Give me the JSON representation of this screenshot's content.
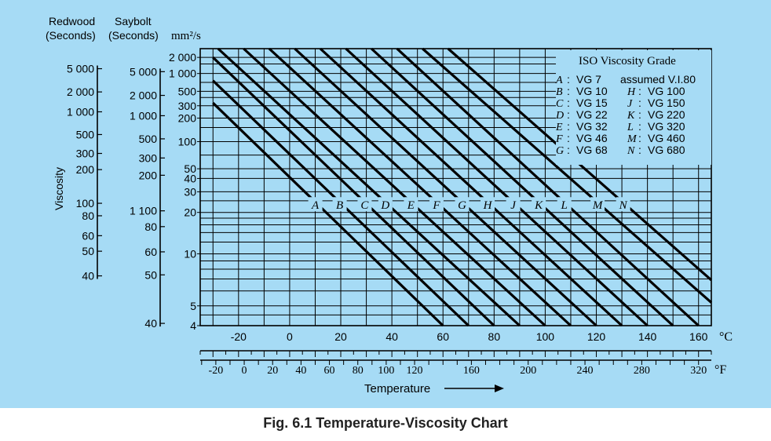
{
  "page": {
    "background": "#a6dbf5",
    "grid_color": "#000000"
  },
  "figure": {
    "caption": "Fig. 6.1 Temperature-Viscosity Chart"
  },
  "chart_data": {
    "type": "line",
    "title": "",
    "ylabel": "Viscosity",
    "xlabel": "Temperature",
    "x_unit_primary": "°C",
    "x_unit_secondary": "°F",
    "y_unit": "mm²/s",
    "y_scale": "log-log (Walther)",
    "ylim": [
      4,
      3000
    ],
    "xlim": [
      -35,
      165
    ],
    "column_headers": {
      "redwood": [
        "Redwood",
        "(Seconds)"
      ],
      "saybolt": [
        "Saybolt",
        "(Seconds)"
      ]
    },
    "y_ticks_mm2s": [
      "2 000",
      "1 000",
      "500",
      "300",
      "200",
      "100",
      "50",
      "40",
      "30",
      "20",
      "10",
      "5",
      "4"
    ],
    "y_ticks_mm2s_values": [
      2000,
      1000,
      500,
      300,
      200,
      100,
      50,
      40,
      30,
      20,
      10,
      5,
      4
    ],
    "saybolt_ticks": [
      {
        "label": "5 000",
        "value": 1079
      },
      {
        "label": "2 000",
        "value": 431
      },
      {
        "label": "1 000",
        "value": 216
      },
      {
        "label": "500",
        "value": 108
      },
      {
        "label": "300",
        "value": 65
      },
      {
        "label": "200",
        "value": 43
      },
      {
        "label": "1 100",
        "value": 20.6
      },
      {
        "label": "80",
        "value": 15.5
      },
      {
        "label": "60",
        "value": 10.3
      },
      {
        "label": "50",
        "value": 7.4
      },
      {
        "label": "40",
        "value": 4.1
      }
    ],
    "redwood_ticks": [
      {
        "label": "5 000",
        "value": 1222
      },
      {
        "label": "2 000",
        "value": 489
      },
      {
        "label": "1 000",
        "value": 245
      },
      {
        "label": "500",
        "value": 122
      },
      {
        "label": "300",
        "value": 73
      },
      {
        "label": "200",
        "value": 49
      },
      {
        "label": "100",
        "value": 23.8
      },
      {
        "label": "80",
        "value": 18.8
      },
      {
        "label": "60",
        "value": 13.3
      },
      {
        "label": "50",
        "value": 10.4
      },
      {
        "label": "40",
        "value": 7.3
      }
    ],
    "x_ticks_c": [
      -20,
      0,
      20,
      40,
      60,
      80,
      100,
      120,
      140,
      160
    ],
    "x_ticks_f": [
      -20,
      0,
      20,
      40,
      60,
      80,
      100,
      120,
      160,
      200,
      240,
      280,
      320
    ],
    "series": [
      {
        "name": "A",
        "grade": "VG 7",
        "x": [
          -30,
          60
        ],
        "y": [
          330,
          4
        ]
      },
      {
        "name": "B",
        "grade": "VG 10",
        "x": [
          -30,
          70
        ],
        "y": [
          750,
          4
        ]
      },
      {
        "name": "C",
        "grade": "VG 15",
        "x": [
          -30,
          80
        ],
        "y": [
          2000,
          4
        ]
      },
      {
        "name": "D",
        "grade": "VG 22",
        "x": [
          -28,
          90
        ],
        "y": [
          3000,
          4
        ]
      },
      {
        "name": "E",
        "grade": "VG 32",
        "x": [
          -18,
          100
        ],
        "y": [
          3000,
          4
        ]
      },
      {
        "name": "F",
        "grade": "VG 46",
        "x": [
          -8,
          110
        ],
        "y": [
          3000,
          4
        ]
      },
      {
        "name": "G",
        "grade": "VG 68",
        "x": [
          2,
          120
        ],
        "y": [
          3000,
          4
        ]
      },
      {
        "name": "H",
        "grade": "VG 100",
        "x": [
          12,
          130
        ],
        "y": [
          3000,
          4
        ]
      },
      {
        "name": "J",
        "grade": "VG 150",
        "x": [
          22,
          140
        ],
        "y": [
          3000,
          4
        ]
      },
      {
        "name": "K",
        "grade": "VG 220",
        "x": [
          32,
          150
        ],
        "y": [
          3000,
          4
        ]
      },
      {
        "name": "L",
        "grade": "VG 320",
        "x": [
          42,
          160
        ],
        "y": [
          3000,
          4
        ]
      },
      {
        "name": "M",
        "grade": "VG 460",
        "x": [
          52,
          165
        ],
        "y": [
          3000,
          5.2
        ]
      },
      {
        "name": "N",
        "grade": "VG 680",
        "x": [
          62,
          165
        ],
        "y": [
          3000,
          6.9
        ]
      }
    ],
    "legend": {
      "title": "ISO Viscosity Grade",
      "note": "assumed V.I.80",
      "placement": "top-right",
      "left_col": [
        {
          "key": "A",
          "text": "VG 7"
        },
        {
          "key": "B",
          "text": "VG 10"
        },
        {
          "key": "C",
          "text": "VG 15"
        },
        {
          "key": "D",
          "text": "VG 22"
        },
        {
          "key": "E",
          "text": "VG 32"
        },
        {
          "key": "F",
          "text": "VG 46"
        },
        {
          "key": "G",
          "text": "VG 68"
        }
      ],
      "right_col": [
        {
          "key": "H",
          "text": "VG 100"
        },
        {
          "key": "J",
          "text": "VG 150"
        },
        {
          "key": "K",
          "text": "VG 220"
        },
        {
          "key": "L",
          "text": "VG 320"
        },
        {
          "key": "M",
          "text": "VG 460"
        },
        {
          "key": "N",
          "text": "VG 680"
        }
      ]
    }
  }
}
